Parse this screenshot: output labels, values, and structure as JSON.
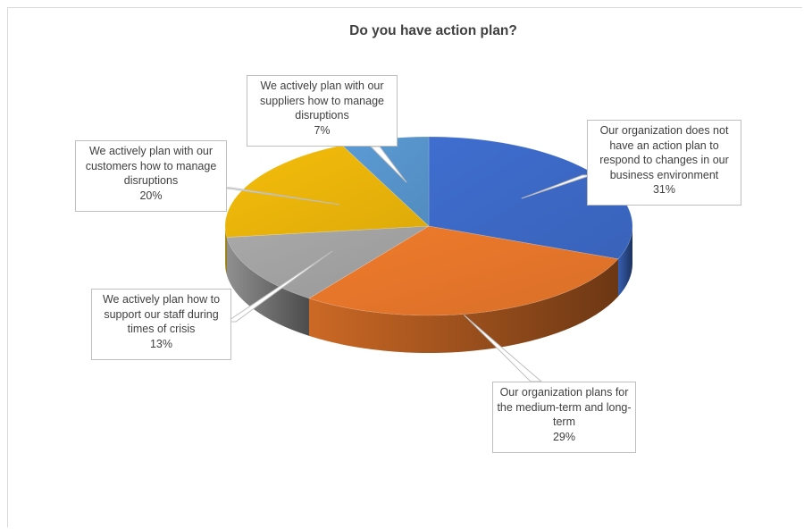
{
  "chart_data": {
    "type": "pie",
    "title": "Do you have action plan?",
    "slices": [
      {
        "label": "Our organization  does not have an action plan to respond to changes in our business environment",
        "percent": "31%",
        "value": 31,
        "color": "#3f6ecf"
      },
      {
        "label": "Our organization plans for the medium-term and long-term",
        "percent": "29%",
        "value": 29,
        "color": "#f07b2c"
      },
      {
        "label": "We actively plan how to support our staff during times of crisis",
        "percent": "13%",
        "value": 13,
        "color": "#a9a9a9"
      },
      {
        "label": "We actively plan with our customers how to manage disruptions",
        "percent": "20%",
        "value": 20,
        "color": "#f5bd0a"
      },
      {
        "label": "We actively plan with our suppliers how to manage disruptions",
        "percent": "7%",
        "value": 7,
        "color": "#5b9bd5"
      }
    ]
  }
}
